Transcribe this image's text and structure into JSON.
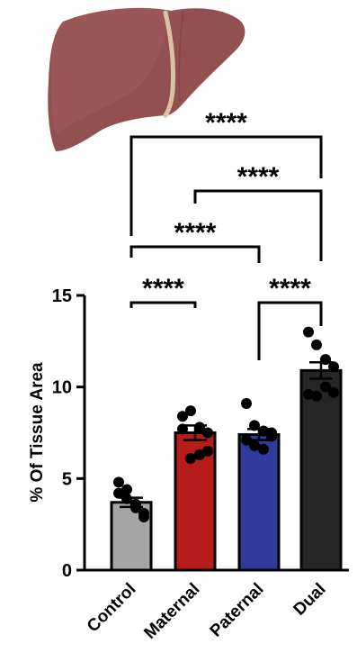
{
  "chart_data": {
    "type": "bar",
    "title": "",
    "xlabel": "",
    "ylabel": "% Of Tissue Area",
    "ylim": [
      0,
      15
    ],
    "yticks": [
      0,
      5,
      10,
      15
    ],
    "categories": [
      "Control",
      "Maternal",
      "Paternal",
      "Dual"
    ],
    "values": [
      3.7,
      7.5,
      7.4,
      10.9
    ],
    "sem": [
      0.25,
      0.4,
      0.3,
      0.45
    ],
    "colors": [
      "#a6a6a6",
      "#b71c1c",
      "#303a9c",
      "#262626"
    ],
    "points": [
      [
        4.2,
        3.9,
        3.4,
        2.9,
        4.8,
        4.4,
        3.6,
        3.1
      ],
      [
        8.4,
        8.7,
        7.8,
        7.5,
        7.7,
        6.1,
        6.3,
        6.5
      ],
      [
        9.1,
        7.9,
        7.6,
        7.3,
        7.1,
        6.8,
        6.6,
        7.5
      ],
      [
        13.0,
        12.3,
        11.5,
        11.1,
        9.6,
        9.5,
        10.0,
        9.7
      ]
    ],
    "comparisons": [
      {
        "groups": [
          0,
          1
        ],
        "label": "****"
      },
      {
        "groups": [
          2,
          3
        ],
        "label": "****"
      },
      {
        "groups": [
          0,
          2
        ],
        "label": "****"
      },
      {
        "groups": [
          1,
          3
        ],
        "label": "****"
      },
      {
        "groups": [
          0,
          3
        ],
        "label": "****"
      }
    ],
    "grid": false,
    "legend": "none",
    "illustration": "liver-icon"
  }
}
